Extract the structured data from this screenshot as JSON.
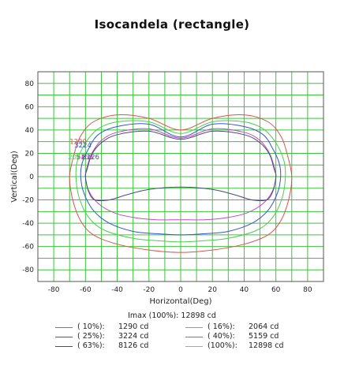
{
  "chart_data": {
    "type": "line",
    "title": "Isocandela (rectangle)",
    "xlabel": "Horizontal(Deg)",
    "ylabel": "Vertical(Deg)",
    "xlim": [
      -90,
      90
    ],
    "ylim": [
      -90,
      90
    ],
    "xticks": [
      -80,
      -60,
      -40,
      -20,
      0,
      20,
      40,
      60,
      80
    ],
    "yticks": [
      80,
      60,
      40,
      20,
      0,
      -20,
      -40,
      -60,
      -80
    ],
    "grid": true,
    "imax_text": "Imax (100%): 12898 cd",
    "series": [
      {
        "name": "( 10%):",
        "value_text": "1290 cd",
        "color": "#d9534f",
        "points": [
          [
            0,
            40
          ],
          [
            20,
            50
          ],
          [
            40,
            53
          ],
          [
            55,
            47
          ],
          [
            63,
            35
          ],
          [
            67,
            20
          ],
          [
            70,
            0
          ],
          [
            68,
            -20
          ],
          [
            63,
            -38
          ],
          [
            55,
            -50
          ],
          [
            40,
            -58
          ],
          [
            20,
            -63
          ],
          [
            0,
            -65
          ],
          [
            -20,
            -63
          ],
          [
            -40,
            -58
          ],
          [
            -55,
            -50
          ],
          [
            -63,
            -38
          ],
          [
            -68,
            -20
          ],
          [
            -70,
            0
          ],
          [
            -67,
            20
          ],
          [
            -63,
            35
          ],
          [
            -55,
            47
          ],
          [
            -40,
            53
          ],
          [
            -20,
            50
          ]
        ]
      },
      {
        "name": "( 16%):",
        "value_text": "2064 cd",
        "color": "#4ccd4c",
        "points": [
          [
            0,
            37
          ],
          [
            20,
            47
          ],
          [
            40,
            47
          ],
          [
            52,
            41
          ],
          [
            60,
            29
          ],
          [
            65,
            14
          ],
          [
            66,
            0
          ],
          [
            64,
            -18
          ],
          [
            58,
            -35
          ],
          [
            48,
            -46
          ],
          [
            30,
            -53
          ],
          [
            15,
            -55
          ],
          [
            0,
            -56
          ],
          [
            -15,
            -55
          ],
          [
            -30,
            -53
          ],
          [
            -48,
            -46
          ],
          [
            -58,
            -35
          ],
          [
            -64,
            -18
          ],
          [
            -66,
            0
          ],
          [
            -65,
            14
          ],
          [
            -60,
            29
          ],
          [
            -52,
            41
          ],
          [
            -40,
            47
          ],
          [
            -20,
            47
          ]
        ]
      },
      {
        "name": "( 25%):",
        "value_text": "3224 cd",
        "color": "#3355cc",
        "points": [
          [
            0,
            34
          ],
          [
            20,
            45
          ],
          [
            40,
            43
          ],
          [
            52,
            36
          ],
          [
            58,
            24
          ],
          [
            62,
            12
          ],
          [
            63,
            0
          ],
          [
            61,
            -14
          ],
          [
            55,
            -29
          ],
          [
            45,
            -40
          ],
          [
            30,
            -47
          ],
          [
            15,
            -49
          ],
          [
            0,
            -50
          ],
          [
            -15,
            -49
          ],
          [
            -30,
            -47
          ],
          [
            -45,
            -40
          ],
          [
            -55,
            -29
          ],
          [
            -61,
            -14
          ],
          [
            -63,
            0
          ],
          [
            -62,
            12
          ],
          [
            -58,
            24
          ],
          [
            -52,
            36
          ],
          [
            -40,
            43
          ],
          [
            -20,
            45
          ]
        ]
      },
      {
        "name": "( 40%):",
        "value_text": "5159 cd",
        "color": "#c04cc0",
        "points": [
          [
            0,
            33
          ],
          [
            20,
            41
          ],
          [
            40,
            38
          ],
          [
            50,
            31
          ],
          [
            56,
            20
          ],
          [
            59,
            8
          ],
          [
            60,
            0
          ],
          [
            58,
            -12
          ],
          [
            52,
            -23
          ],
          [
            42,
            -31
          ],
          [
            30,
            -35
          ],
          [
            15,
            -37
          ],
          [
            0,
            -37
          ],
          [
            -15,
            -37
          ],
          [
            -30,
            -35
          ],
          [
            -42,
            -31
          ],
          [
            -52,
            -23
          ],
          [
            -58,
            -12
          ],
          [
            -60,
            0
          ],
          [
            -59,
            8
          ],
          [
            -56,
            20
          ],
          [
            -50,
            31
          ],
          [
            -40,
            38
          ],
          [
            -20,
            41
          ]
        ]
      },
      {
        "name": "( 63%):",
        "value_text": "8126 cd",
        "color": "#4a4a7a",
        "points": [
          [
            0,
            32
          ],
          [
            20,
            39
          ],
          [
            40,
            36
          ],
          [
            50,
            29
          ],
          [
            56,
            19
          ],
          [
            59,
            6
          ],
          [
            60,
            0
          ],
          [
            58,
            -13
          ],
          [
            54,
            -20
          ],
          [
            45,
            -20
          ],
          [
            35,
            -16
          ],
          [
            20,
            -11
          ],
          [
            0,
            -9
          ],
          [
            -20,
            -11
          ],
          [
            -35,
            -16
          ],
          [
            -45,
            -20
          ],
          [
            -54,
            -20
          ],
          [
            -58,
            -13
          ],
          [
            -60,
            0
          ],
          [
            -59,
            6
          ],
          [
            -56,
            19
          ],
          [
            -50,
            29
          ],
          [
            -40,
            36
          ],
          [
            -20,
            39
          ]
        ]
      },
      {
        "name": "(100%):",
        "value_text": "12898 cd",
        "color": "#b8b82a",
        "points": []
      }
    ],
    "annotations": [
      {
        "text": "1290",
        "color": "#d9534f",
        "x": -70,
        "y": 28
      },
      {
        "text": "3224",
        "color": "#3355cc",
        "x": -67,
        "y": 25
      },
      {
        "text": "2064",
        "color": "#4ccd4c",
        "x": -71,
        "y": 15
      },
      {
        "text": "5159",
        "color": "#c04cc0",
        "x": -66,
        "y": 15
      },
      {
        "text": "8126",
        "color": "#4a4a7a",
        "x": -62,
        "y": 15
      }
    ]
  }
}
